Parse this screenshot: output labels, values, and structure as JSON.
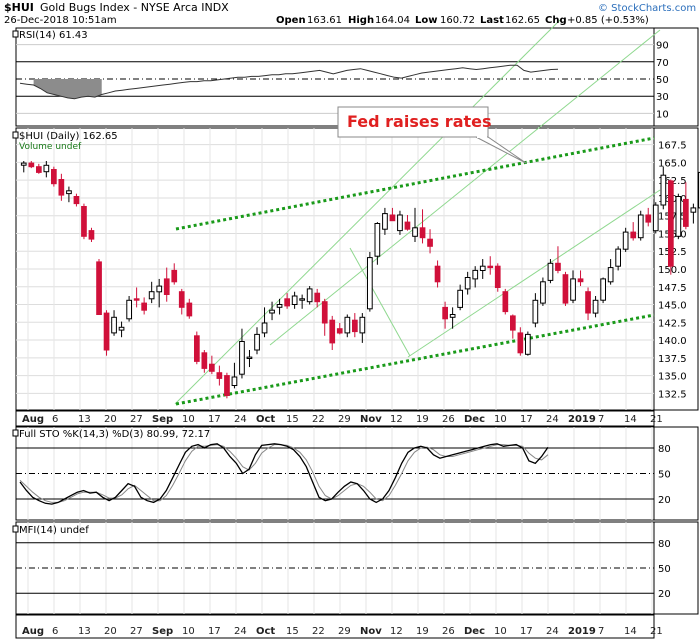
{
  "header": {
    "symbol": "$HUI",
    "name": "Gold Bugs Index - NYSE Arca INDX",
    "datetime": "26-Dec-2018 10:51am",
    "open_label": "Open",
    "open": "163.61",
    "high_label": "High",
    "high": "164.04",
    "low_label": "Low",
    "low": "160.72",
    "last_label": "Last",
    "last": "162.65",
    "chg_label": "Chg",
    "chg": "+0.85 (+0.53%)",
    "brand": "© StockCharts.com"
  },
  "colors": {
    "up": "#000000",
    "down": "#d0103a",
    "last_bar": "#ffff00",
    "trend_dotted": "#1a9a1a",
    "channel": "#8fd88f",
    "annotation": "#e02020",
    "brand": "#2a6ebb"
  },
  "annotation": {
    "text": "Fed raises rates"
  },
  "panels": {
    "rsi": {
      "label": "RSI(14) 61.43",
      "levels": [
        "90",
        "70",
        "50",
        "30",
        "10"
      ]
    },
    "price": {
      "label": "$HUI (Daily) 162.65",
      "sub_label": "Volume undef",
      "levels": [
        "167.5",
        "165.0",
        "162.5",
        "160.0",
        "157.5",
        "155.0",
        "152.5",
        "150.0",
        "147.5",
        "145.0",
        "142.5",
        "140.0",
        "137.5",
        "135.0",
        "132.5"
      ]
    },
    "sto": {
      "label": "Full STO %K(14,3) %D(3) 80.99, 72.17",
      "levels": [
        "80",
        "50",
        "20"
      ]
    },
    "mfi": {
      "label": "MFI(14) undef",
      "levels": [
        "80",
        "50",
        "20"
      ]
    }
  },
  "xaxis": {
    "labels": [
      {
        "t": "Aug",
        "bold": true
      },
      {
        "t": "6"
      },
      {
        "t": "13"
      },
      {
        "t": "20"
      },
      {
        "t": "27"
      },
      {
        "t": "Sep",
        "bold": true
      },
      {
        "t": "10"
      },
      {
        "t": "17"
      },
      {
        "t": "24"
      },
      {
        "t": "Oct",
        "bold": true
      },
      {
        "t": "15"
      },
      {
        "t": "22"
      },
      {
        "t": "29"
      },
      {
        "t": "Nov",
        "bold": true
      },
      {
        "t": "12"
      },
      {
        "t": "19"
      },
      {
        "t": "26"
      },
      {
        "t": "Dec",
        "bold": true
      },
      {
        "t": "10"
      },
      {
        "t": "17"
      },
      {
        "t": "24"
      },
      {
        "t": "2019",
        "bold": true
      },
      {
        "t": "7"
      },
      {
        "t": "14"
      },
      {
        "t": "21"
      }
    ]
  },
  "chart_data": {
    "type": "candlestick",
    "title": "$HUI Gold Bugs Index - NYSE Arca INDX",
    "ylim": [
      131,
      169
    ],
    "candles": [
      [
        164.6,
        165.2,
        163.6,
        164.9
      ],
      [
        164.9,
        165.2,
        164.2,
        164.4
      ],
      [
        164.4,
        164.8,
        163.4,
        163.6
      ],
      [
        163.7,
        165.2,
        162.9,
        164.6
      ],
      [
        164.0,
        164.4,
        161.6,
        162.0
      ],
      [
        162.6,
        163.4,
        159.6,
        160.4
      ],
      [
        160.6,
        161.6,
        159.4,
        161.0
      ],
      [
        160.2,
        160.6,
        158.8,
        159.2
      ],
      [
        158.8,
        159.2,
        154.2,
        154.6
      ],
      [
        155.4,
        155.8,
        153.8,
        154.2
      ],
      [
        151.0,
        151.4,
        143.8,
        143.6
      ],
      [
        143.8,
        144.2,
        137.8,
        138.6
      ],
      [
        141.0,
        144.2,
        140.6,
        143.2
      ],
      [
        141.4,
        142.6,
        140.4,
        141.8
      ],
      [
        143.0,
        146.2,
        142.6,
        145.6
      ],
      [
        145.8,
        147.4,
        144.6,
        145.6
      ],
      [
        145.2,
        146.0,
        143.6,
        144.2
      ],
      [
        145.8,
        148.2,
        145.2,
        146.8
      ],
      [
        146.8,
        148.6,
        144.6,
        147.6
      ],
      [
        148.6,
        150.2,
        145.4,
        146.4
      ],
      [
        149.8,
        150.8,
        147.8,
        148.2
      ],
      [
        146.8,
        147.2,
        143.6,
        144.6
      ],
      [
        145.2,
        145.8,
        143.0,
        143.4
      ],
      [
        140.6,
        141.2,
        136.6,
        137.0
      ],
      [
        138.2,
        138.6,
        135.4,
        136.0
      ],
      [
        136.6,
        137.8,
        135.2,
        135.6
      ],
      [
        135.4,
        136.4,
        133.6,
        134.6
      ],
      [
        135.0,
        135.4,
        131.8,
        132.2
      ],
      [
        133.6,
        136.8,
        133.2,
        134.8
      ],
      [
        135.2,
        141.6,
        134.6,
        139.8
      ],
      [
        137.4,
        138.6,
        136.2,
        137.6
      ],
      [
        138.6,
        141.8,
        138.0,
        140.8
      ],
      [
        141.0,
        144.6,
        140.4,
        142.4
      ],
      [
        143.8,
        145.4,
        142.8,
        144.2
      ],
      [
        144.6,
        145.8,
        143.6,
        145.0
      ],
      [
        145.8,
        146.6,
        144.4,
        144.8
      ],
      [
        145.0,
        146.8,
        144.4,
        146.2
      ],
      [
        145.6,
        146.4,
        144.4,
        145.8
      ],
      [
        145.4,
        147.6,
        145.0,
        147.2
      ],
      [
        146.6,
        147.2,
        144.6,
        145.4
      ],
      [
        145.4,
        145.8,
        140.6,
        142.4
      ],
      [
        142.8,
        143.4,
        138.6,
        139.6
      ],
      [
        141.6,
        142.4,
        140.8,
        141.0
      ],
      [
        141.0,
        143.6,
        140.4,
        143.2
      ],
      [
        142.8,
        143.8,
        140.4,
        141.2
      ],
      [
        141.0,
        143.8,
        139.6,
        143.2
      ],
      [
        144.4,
        152.4,
        144.0,
        151.6
      ],
      [
        151.8,
        156.6,
        150.6,
        156.4
      ],
      [
        155.6,
        158.6,
        154.8,
        157.8
      ],
      [
        157.6,
        158.6,
        156.8,
        156.8
      ],
      [
        155.4,
        158.2,
        154.8,
        157.6
      ],
      [
        156.6,
        157.6,
        155.4,
        155.6
      ],
      [
        154.6,
        158.6,
        153.8,
        155.8
      ],
      [
        155.8,
        158.4,
        153.6,
        154.4
      ],
      [
        154.2,
        155.6,
        152.2,
        153.2
      ],
      [
        150.4,
        151.2,
        147.4,
        148.2
      ],
      [
        144.6,
        145.4,
        141.6,
        143.0
      ],
      [
        143.2,
        144.6,
        141.6,
        143.6
      ],
      [
        144.6,
        147.8,
        144.2,
        147.0
      ],
      [
        147.2,
        149.6,
        146.4,
        148.8
      ],
      [
        148.6,
        150.4,
        147.4,
        149.8
      ],
      [
        149.8,
        151.4,
        148.6,
        150.4
      ],
      [
        150.4,
        151.8,
        149.2,
        150.2
      ],
      [
        150.4,
        150.8,
        146.8,
        147.4
      ],
      [
        146.8,
        147.2,
        143.6,
        144.0
      ],
      [
        143.4,
        143.6,
        140.2,
        141.4
      ],
      [
        141.0,
        141.8,
        137.8,
        138.2
      ],
      [
        138.0,
        141.2,
        137.8,
        140.8
      ],
      [
        142.4,
        146.6,
        141.8,
        145.6
      ],
      [
        145.2,
        148.8,
        144.8,
        148.2
      ],
      [
        148.4,
        151.4,
        148.0,
        150.8
      ],
      [
        150.8,
        153.2,
        149.4,
        149.8
      ],
      [
        149.2,
        149.6,
        144.8,
        145.2
      ],
      [
        145.6,
        149.8,
        145.2,
        148.6
      ],
      [
        148.6,
        149.8,
        147.6,
        148.2
      ],
      [
        146.8,
        147.4,
        142.8,
        143.8
      ],
      [
        143.8,
        146.2,
        143.2,
        145.6
      ],
      [
        145.6,
        148.8,
        145.2,
        148.6
      ],
      [
        148.2,
        151.4,
        147.8,
        150.2
      ],
      [
        150.4,
        153.2,
        149.8,
        152.8
      ],
      [
        152.8,
        155.8,
        152.4,
        155.2
      ],
      [
        155.2,
        156.6,
        154.0,
        154.4
      ],
      [
        154.4,
        158.2,
        154.0,
        157.6
      ],
      [
        157.6,
        158.6,
        156.0,
        156.6
      ],
      [
        155.4,
        159.4,
        155.0,
        159.0
      ],
      [
        159.0,
        164.4,
        158.4,
        163.2
      ],
      [
        162.4,
        162.6,
        149.2,
        150.4
      ],
      [
        154.6,
        160.6,
        154.2,
        160.2
      ],
      [
        159.8,
        162.2,
        155.6,
        156.0
      ],
      [
        158.0,
        159.2,
        156.4,
        158.6
      ],
      [
        158.6,
        164.2,
        158.4,
        163.6
      ],
      [
        161.8,
        164.0,
        160.7,
        162.65
      ]
    ],
    "rsi": [
      45,
      44,
      43,
      39,
      34,
      32,
      30,
      28,
      27,
      29,
      30,
      29,
      32,
      34,
      36,
      37,
      38,
      39,
      40,
      41,
      42,
      43,
      44,
      45,
      46,
      47,
      47,
      48,
      48,
      49,
      50,
      51,
      52,
      52,
      53,
      53,
      54,
      55,
      55,
      56,
      56,
      57,
      58,
      59,
      60,
      58,
      56,
      58,
      60,
      61,
      62,
      60,
      58,
      56,
      54,
      52,
      51,
      53,
      55,
      57,
      58,
      59,
      60,
      61,
      62,
      63,
      62,
      61,
      62,
      63,
      64,
      65,
      66,
      66,
      60,
      58,
      59,
      60,
      61,
      61.43
    ],
    "sto_k": [
      40,
      30,
      22,
      18,
      15,
      14,
      16,
      20,
      24,
      28,
      30,
      27,
      28,
      22,
      18,
      22,
      30,
      38,
      35,
      22,
      18,
      16,
      20,
      30,
      45,
      60,
      75,
      82,
      84,
      80,
      84,
      85,
      80,
      70,
      62,
      50,
      55,
      72,
      83,
      84,
      85,
      84,
      82,
      78,
      70,
      58,
      40,
      22,
      18,
      20,
      28,
      35,
      40,
      38,
      30,
      20,
      16,
      20,
      30,
      45,
      62,
      75,
      80,
      82,
      80,
      72,
      68,
      70,
      72,
      74,
      76,
      78,
      80,
      82,
      84,
      85,
      82,
      83,
      84,
      80,
      65,
      62,
      70,
      80.99
    ],
    "sto_d": [
      42,
      35,
      28,
      22,
      18,
      16,
      16,
      18,
      22,
      26,
      28,
      28,
      28,
      25,
      21,
      21,
      25,
      32,
      36,
      30,
      24,
      18,
      18,
      24,
      36,
      50,
      65,
      76,
      82,
      82,
      83,
      84,
      82,
      76,
      68,
      58,
      54,
      62,
      74,
      80,
      84,
      84,
      83,
      80,
      75,
      66,
      52,
      35,
      24,
      20,
      24,
      30,
      36,
      38,
      35,
      28,
      20,
      18,
      24,
      36,
      50,
      65,
      75,
      80,
      81,
      78,
      72,
      70,
      70,
      72,
      74,
      76,
      78,
      80,
      82,
      84,
      84,
      83,
      83,
      82,
      74,
      68,
      66,
      72.17
    ]
  }
}
